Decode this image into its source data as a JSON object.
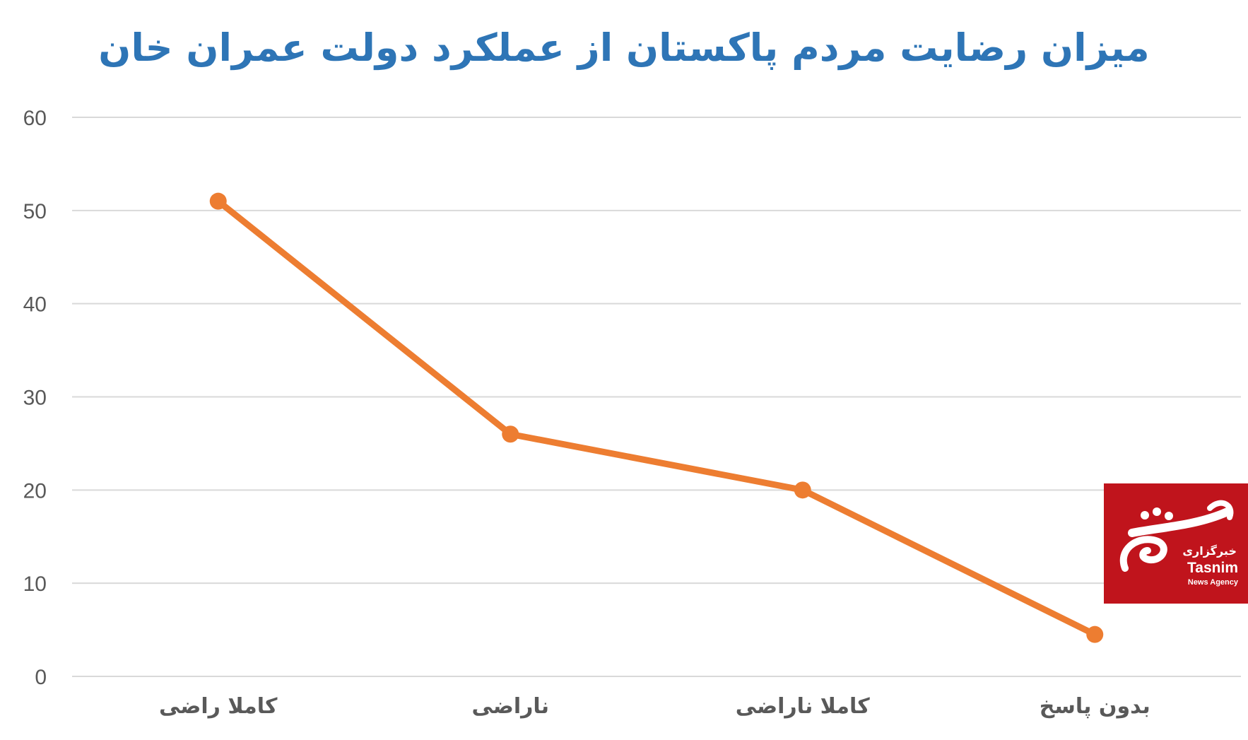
{
  "chart_data": {
    "type": "line",
    "title": "میزان  رضایت مردم پاکستان از عملکرد دولت عمران خان",
    "categories": [
      "کاملا راضی",
      "ناراضی",
      "کاملا ناراضی",
      "بدون پاسخ"
    ],
    "series": [
      {
        "values": [
          51,
          26,
          20,
          4.5
        ]
      }
    ],
    "ylim": [
      0,
      60
    ],
    "yticks": [
      0,
      10,
      20,
      30,
      40,
      50,
      60
    ],
    "grid": true,
    "line_color": "#ed7d31",
    "grid_color": "#d9d9d9"
  },
  "logo": {
    "fa_text": "خبرگزاری",
    "en_text": "Tasnim",
    "sub_text": "News Agency",
    "bg_color": "#c0141c"
  }
}
